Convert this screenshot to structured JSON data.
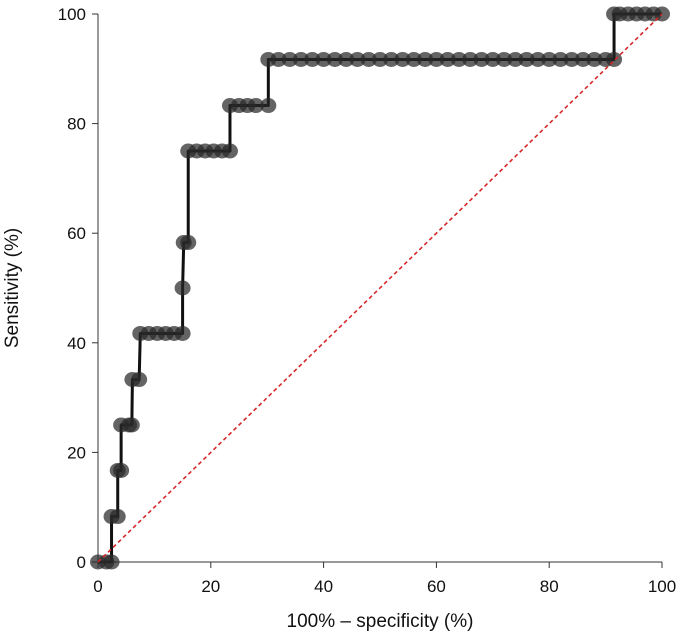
{
  "chart_data": {
    "type": "line",
    "xlabel": "100% – specificity (%)",
    "ylabel": "Sensitivity (%)",
    "xlim": [
      0,
      100
    ],
    "ylim": [
      0,
      100
    ],
    "x_ticks": [
      0,
      20,
      40,
      60,
      80,
      100
    ],
    "y_ticks": [
      0,
      20,
      40,
      60,
      80,
      100
    ],
    "grid": false,
    "series": [
      {
        "style": "step-line-with-markers",
        "color": "#111111",
        "points": [
          {
            "x": 0,
            "y": 0
          },
          {
            "x": 1.5,
            "y": 0
          },
          {
            "x": 2.4,
            "y": 0
          },
          {
            "x": 2.4,
            "y": 8.3
          },
          {
            "x": 3.5,
            "y": 8.3
          },
          {
            "x": 3.5,
            "y": 16.7
          },
          {
            "x": 4.1,
            "y": 16.7
          },
          {
            "x": 4.1,
            "y": 25
          },
          {
            "x": 5.5,
            "y": 25
          },
          {
            "x": 6.0,
            "y": 25
          },
          {
            "x": 6.1,
            "y": 33.3
          },
          {
            "x": 7.3,
            "y": 33.3
          },
          {
            "x": 7.5,
            "y": 41.7
          },
          {
            "x": 9,
            "y": 41.7
          },
          {
            "x": 10.5,
            "y": 41.7
          },
          {
            "x": 12,
            "y": 41.7
          },
          {
            "x": 13.5,
            "y": 41.7
          },
          {
            "x": 15,
            "y": 41.7
          },
          {
            "x": 15.0,
            "y": 50
          },
          {
            "x": 15.2,
            "y": 58.3
          },
          {
            "x": 16.0,
            "y": 58.3
          },
          {
            "x": 16.0,
            "y": 75
          },
          {
            "x": 17.5,
            "y": 75
          },
          {
            "x": 19,
            "y": 75
          },
          {
            "x": 20.5,
            "y": 75
          },
          {
            "x": 22,
            "y": 75
          },
          {
            "x": 23.4,
            "y": 75
          },
          {
            "x": 23.4,
            "y": 83.3
          },
          {
            "x": 25,
            "y": 83.3
          },
          {
            "x": 26.5,
            "y": 83.3
          },
          {
            "x": 28,
            "y": 83.3
          },
          {
            "x": 30.2,
            "y": 83.3
          },
          {
            "x": 30.2,
            "y": 91.7
          },
          {
            "x": 32,
            "y": 91.7
          },
          {
            "x": 34,
            "y": 91.7
          },
          {
            "x": 36,
            "y": 91.7
          },
          {
            "x": 38,
            "y": 91.7
          },
          {
            "x": 40,
            "y": 91.7
          },
          {
            "x": 42,
            "y": 91.7
          },
          {
            "x": 44,
            "y": 91.7
          },
          {
            "x": 46,
            "y": 91.7
          },
          {
            "x": 48,
            "y": 91.7
          },
          {
            "x": 50,
            "y": 91.7
          },
          {
            "x": 52,
            "y": 91.7
          },
          {
            "x": 54,
            "y": 91.7
          },
          {
            "x": 56,
            "y": 91.7
          },
          {
            "x": 58,
            "y": 91.7
          },
          {
            "x": 60,
            "y": 91.7
          },
          {
            "x": 62,
            "y": 91.7
          },
          {
            "x": 64,
            "y": 91.7
          },
          {
            "x": 66,
            "y": 91.7
          },
          {
            "x": 68,
            "y": 91.7
          },
          {
            "x": 70,
            "y": 91.7
          },
          {
            "x": 72,
            "y": 91.7
          },
          {
            "x": 74,
            "y": 91.7
          },
          {
            "x": 76,
            "y": 91.7
          },
          {
            "x": 78,
            "y": 91.7
          },
          {
            "x": 80,
            "y": 91.7
          },
          {
            "x": 82,
            "y": 91.7
          },
          {
            "x": 84,
            "y": 91.7
          },
          {
            "x": 86,
            "y": 91.7
          },
          {
            "x": 88,
            "y": 91.7
          },
          {
            "x": 90,
            "y": 91.7
          },
          {
            "x": 91.5,
            "y": 91.7
          },
          {
            "x": 91.5,
            "y": 100
          },
          {
            "x": 92.5,
            "y": 100
          },
          {
            "x": 94,
            "y": 100
          },
          {
            "x": 95.5,
            "y": 100
          },
          {
            "x": 97,
            "y": 100
          },
          {
            "x": 98.5,
            "y": 100
          },
          {
            "x": 100,
            "y": 100
          }
        ]
      },
      {
        "style": "dashed-line",
        "color": "#d62728",
        "points": [
          {
            "x": 0,
            "y": 0
          },
          {
            "x": 100,
            "y": 100
          }
        ]
      }
    ]
  }
}
